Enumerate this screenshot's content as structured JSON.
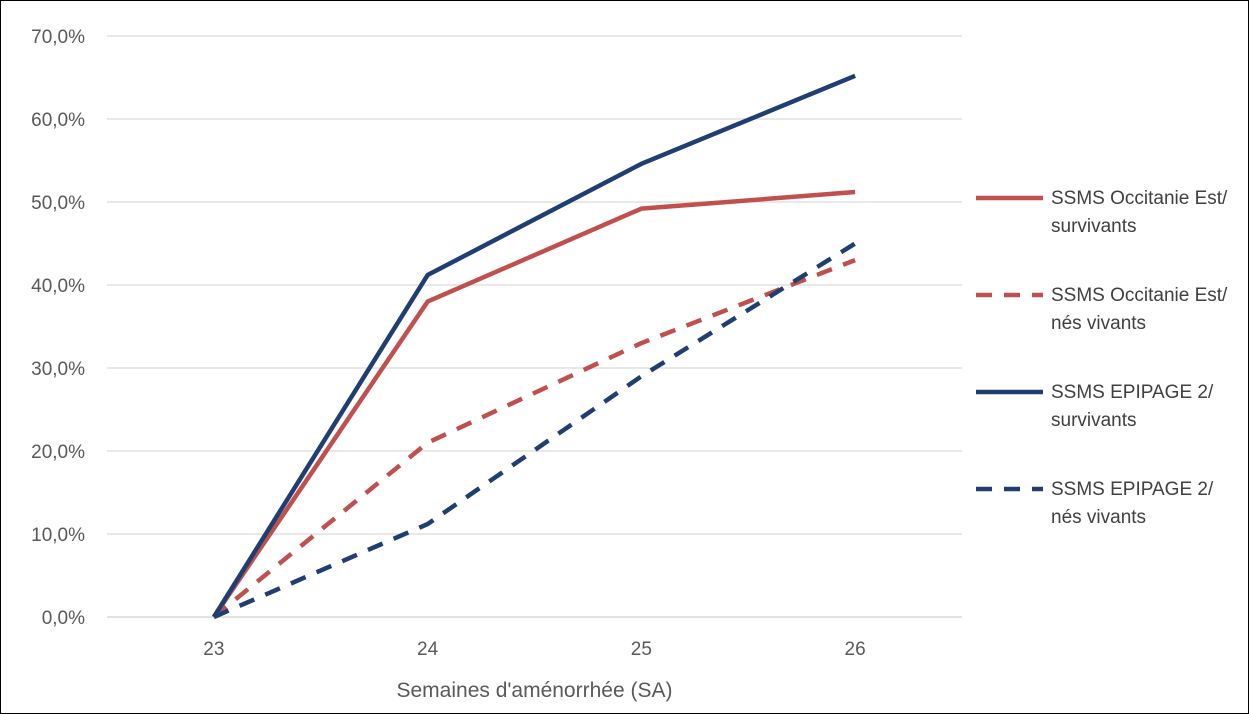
{
  "chart_data": {
    "type": "line",
    "title": "",
    "xlabel": "Semaines d'aménorrhée (SA)",
    "ylabel": "",
    "categories": [
      "23",
      "24",
      "25",
      "26"
    ],
    "y_ticks": [
      "0,0%",
      "10,0%",
      "20,0%",
      "30,0%",
      "40,0%",
      "50,0%",
      "60,0%",
      "70,0%"
    ],
    "ylim": [
      0,
      70
    ],
    "grid": "horizontal",
    "legend_position": "right",
    "series": [
      {
        "name_lines": [
          "SSMS Occitanie Est/",
          "survivants"
        ],
        "values": [
          0,
          38.0,
          49.2,
          51.2
        ],
        "color": "#C0504D",
        "style": "solid"
      },
      {
        "name_lines": [
          "SSMS Occitanie Est/",
          "nés vivants"
        ],
        "values": [
          0,
          21.0,
          33.0,
          43.0
        ],
        "color": "#C0504D",
        "style": "dashed"
      },
      {
        "name_lines": [
          "SSMS EPIPAGE 2/",
          "survivants"
        ],
        "values": [
          0,
          41.2,
          54.6,
          65.2
        ],
        "color": "#1F3F73",
        "style": "solid"
      },
      {
        "name_lines": [
          "SSMS EPIPAGE 2/",
          "nés vivants"
        ],
        "values": [
          0,
          11.2,
          29.0,
          45.0
        ],
        "color": "#1F3F73",
        "style": "dashed"
      }
    ]
  }
}
